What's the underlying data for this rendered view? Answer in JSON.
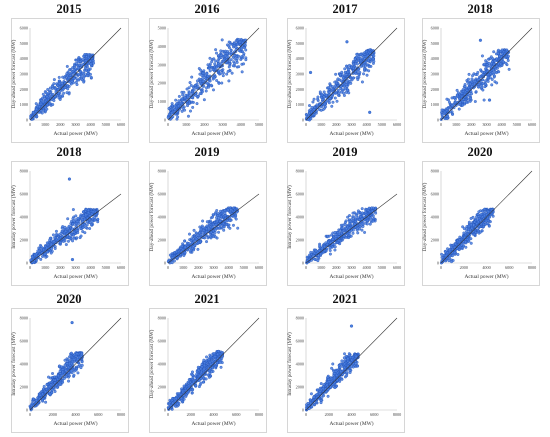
{
  "figure": {
    "panels": [
      {
        "title": "2015",
        "ylabel": "Day-ahead power forecast (MW)",
        "xlabel": "Actual power (MW)",
        "xticks": [
          "0",
          "1000",
          "2000",
          "3000",
          "4000",
          "5000",
          "6000"
        ],
        "yticks": [
          "0",
          "1000",
          "2000",
          "3000",
          "4000",
          "5000",
          "6000"
        ]
      },
      {
        "title": "2016",
        "ylabel": "Day-ahead power forecast (MW)",
        "xlabel": "Actual power (MW)",
        "xticks": [
          "0",
          "1000",
          "2000",
          "3000",
          "4000",
          "5000"
        ],
        "yticks": [
          "0",
          "1000",
          "2000",
          "3000",
          "4000",
          "5000"
        ]
      },
      {
        "title": "2017",
        "ylabel": "Day-ahead power forecast (MW)",
        "xlabel": "Actual power (MW)",
        "xticks": [
          "0",
          "1000",
          "2000",
          "3000",
          "4000",
          "5000",
          "6000"
        ],
        "yticks": [
          "0",
          "1000",
          "2000",
          "3000",
          "4000",
          "5000",
          "6000"
        ]
      },
      {
        "title": "2018",
        "ylabel": "Day-ahead power forecast (MW)",
        "xlabel": "Actual power (MW)",
        "xticks": [
          "0",
          "1000",
          "2000",
          "3000",
          "4000",
          "5000",
          "6000"
        ],
        "yticks": [
          "0",
          "1000",
          "2000",
          "3000",
          "4000",
          "5000",
          "6000"
        ]
      },
      {
        "title": "2018",
        "ylabel": "Intraday power forecast (MW)",
        "xlabel": "Actual power (MW)",
        "xticks": [
          "0",
          "1000",
          "2000",
          "3000",
          "4000",
          "5000",
          "6000"
        ],
        "yticks": [
          "0",
          "2000",
          "4000",
          "6000",
          "8000"
        ]
      },
      {
        "title": "2019",
        "ylabel": "Day-ahead power forecast (MW)",
        "xlabel": "Actual power (MW)",
        "xticks": [
          "0",
          "1000",
          "2000",
          "3000",
          "4000",
          "5000",
          "6000"
        ],
        "yticks": [
          "0",
          "2000",
          "4000",
          "6000",
          "8000"
        ]
      },
      {
        "title": "2019",
        "ylabel": "Intraday power forecast (MW)",
        "xlabel": "Actual power (MW)",
        "xticks": [
          "0",
          "1000",
          "2000",
          "3000",
          "4000",
          "5000",
          "6000"
        ],
        "yticks": [
          "0",
          "2000",
          "4000",
          "6000",
          "8000"
        ]
      },
      {
        "title": "2020",
        "ylabel": "Day-ahead power forecast (MW)",
        "xlabel": "Actual power (MW)",
        "xticks": [
          "0",
          "2000",
          "4000",
          "6000",
          "8000"
        ],
        "yticks": [
          "0",
          "2000",
          "4000",
          "6000",
          "8000"
        ]
      },
      {
        "title": "2020",
        "ylabel": "Intraday power forecast (MW)",
        "xlabel": "Actual power (MW)",
        "xticks": [
          "0",
          "2000",
          "4000",
          "6000",
          "8000"
        ],
        "yticks": [
          "0",
          "2000",
          "4000",
          "6000",
          "8000"
        ]
      },
      {
        "title": "2021",
        "ylabel": "Day-ahead power forecast (MW)",
        "xlabel": "Actual power (MW)",
        "xticks": [
          "0",
          "2000",
          "4000",
          "6000",
          "8000"
        ],
        "yticks": [
          "0",
          "2000",
          "4000",
          "6000",
          "8000"
        ]
      },
      {
        "title": "2021",
        "ylabel": "Intraday power forecast (MW)",
        "xlabel": "Actual power (MW)",
        "xticks": [
          "0",
          "2000",
          "4000",
          "6000",
          "8000"
        ],
        "yticks": [
          "0",
          "2000",
          "4000",
          "6000",
          "8000"
        ]
      }
    ],
    "colors": {
      "points": "#4a7fe0",
      "point_edge": "#1f4fb5",
      "diagonal": "#333333",
      "frame": "#d6d6d6"
    }
  },
  "chart_data": [
    {
      "type": "scatter",
      "title": "2015",
      "xlabel": "Actual power (MW)",
      "ylabel": "Day-ahead power forecast (MW)",
      "xlim": [
        0,
        6000
      ],
      "ylim": [
        0,
        6000
      ],
      "reference_line": "y = x",
      "cluster": {
        "x_range": [
          0,
          4200
        ],
        "y_range": [
          0,
          4200
        ]
      },
      "outliers": []
    },
    {
      "type": "scatter",
      "title": "2016",
      "xlabel": "Actual power (MW)",
      "ylabel": "Day-ahead power forecast (MW)",
      "xlim": [
        0,
        5000
      ],
      "ylim": [
        0,
        5000
      ],
      "reference_line": "y = x",
      "cluster": {
        "x_range": [
          0,
          4300
        ],
        "y_range": [
          0,
          4300
        ]
      },
      "outliers": []
    },
    {
      "type": "scatter",
      "title": "2017",
      "xlabel": "Actual power (MW)",
      "ylabel": "Day-ahead power forecast (MW)",
      "xlim": [
        0,
        6000
      ],
      "ylim": [
        0,
        6000
      ],
      "reference_line": "y = x",
      "cluster": {
        "x_range": [
          0,
          4500
        ],
        "y_range": [
          0,
          4500
        ]
      },
      "outliers": [
        [
          2700,
          5100
        ],
        [
          300,
          3100
        ],
        [
          4200,
          500
        ]
      ]
    },
    {
      "type": "scatter",
      "title": "2018",
      "xlabel": "Actual power (MW)",
      "ylabel": "Day-ahead power forecast (MW)",
      "xlim": [
        0,
        6000
      ],
      "ylim": [
        0,
        6000
      ],
      "reference_line": "y = x",
      "cluster": {
        "x_range": [
          0,
          4500
        ],
        "y_range": [
          0,
          4500
        ]
      },
      "outliers": [
        [
          3200,
          1300
        ],
        [
          2600,
          5200
        ]
      ]
    },
    {
      "type": "scatter",
      "title": "2018",
      "xlabel": "Actual power (MW)",
      "ylabel": "Intraday power forecast (MW)",
      "xlim": [
        0,
        6000
      ],
      "ylim": [
        0,
        8000
      ],
      "reference_line": "y = x",
      "cluster": {
        "x_range": [
          0,
          4500
        ],
        "y_range": [
          0,
          4600
        ]
      },
      "outliers": [
        [
          2600,
          7300
        ],
        [
          2800,
          300
        ]
      ]
    },
    {
      "type": "scatter",
      "title": "2019",
      "xlabel": "Actual power (MW)",
      "ylabel": "Day-ahead power forecast (MW)",
      "xlim": [
        0,
        6000
      ],
      "ylim": [
        0,
        8000
      ],
      "reference_line": "y = x",
      "cluster": {
        "x_range": [
          0,
          4600
        ],
        "y_range": [
          0,
          4700
        ]
      },
      "outliers": []
    },
    {
      "type": "scatter",
      "title": "2019",
      "xlabel": "Actual power (MW)",
      "ylabel": "Intraday power forecast (MW)",
      "xlim": [
        0,
        6000
      ],
      "ylim": [
        0,
        8000
      ],
      "reference_line": "y = x",
      "cluster": {
        "x_range": [
          0,
          4600
        ],
        "y_range": [
          0,
          4700
        ]
      },
      "outliers": []
    },
    {
      "type": "scatter",
      "title": "2020",
      "xlabel": "Actual power (MW)",
      "ylabel": "Day-ahead power forecast (MW)",
      "xlim": [
        0,
        8000
      ],
      "ylim": [
        0,
        8000
      ],
      "reference_line": "y = x",
      "cluster": {
        "x_range": [
          0,
          4600
        ],
        "y_range": [
          0,
          4600
        ]
      },
      "outliers": []
    },
    {
      "type": "scatter",
      "title": "2020",
      "xlabel": "Actual power (MW)",
      "ylabel": "Intraday power forecast (MW)",
      "xlim": [
        0,
        8000
      ],
      "ylim": [
        0,
        8000
      ],
      "reference_line": "y = x",
      "cluster": {
        "x_range": [
          0,
          4600
        ],
        "y_range": [
          0,
          4900
        ]
      },
      "outliers": [
        [
          3700,
          7600
        ]
      ]
    },
    {
      "type": "scatter",
      "title": "2021",
      "xlabel": "Actual power (MW)",
      "ylabel": "Day-ahead power forecast (MW)",
      "xlim": [
        0,
        8000
      ],
      "ylim": [
        0,
        8000
      ],
      "reference_line": "y = x",
      "cluster": {
        "x_range": [
          0,
          4800
        ],
        "y_range": [
          0,
          5000
        ]
      },
      "outliers": []
    },
    {
      "type": "scatter",
      "title": "2021",
      "xlabel": "Actual power (MW)",
      "ylabel": "Intraday power forecast (MW)",
      "xlim": [
        0,
        8000
      ],
      "ylim": [
        0,
        8000
      ],
      "reference_line": "y = x",
      "cluster": {
        "x_range": [
          0,
          4600
        ],
        "y_range": [
          0,
          4800
        ]
      },
      "outliers": [
        [
          4000,
          7300
        ]
      ]
    }
  ]
}
